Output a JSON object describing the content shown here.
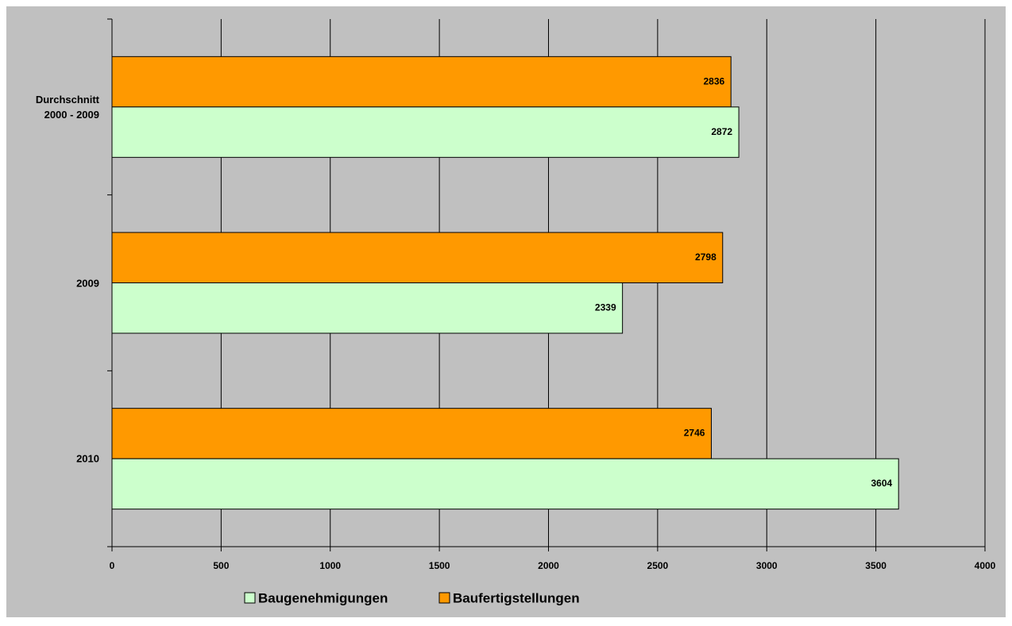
{
  "chart_data": {
    "type": "bar",
    "orientation": "horizontal",
    "categories": [
      "Durchschnitt 2000 - 2009",
      "2009",
      "2010"
    ],
    "series": [
      {
        "name": "Baugenehmigungen",
        "color": "#ccffcc",
        "values": [
          2872,
          2339,
          3604
        ]
      },
      {
        "name": "Baufertigstellungen",
        "color": "#ff9900",
        "values": [
          2836,
          2798,
          2746
        ]
      }
    ],
    "xlim": [
      0,
      4000
    ],
    "xticks": [
      0,
      500,
      1000,
      1500,
      2000,
      2500,
      3000,
      3500,
      4000
    ],
    "grid": true,
    "legend": "bottom"
  }
}
